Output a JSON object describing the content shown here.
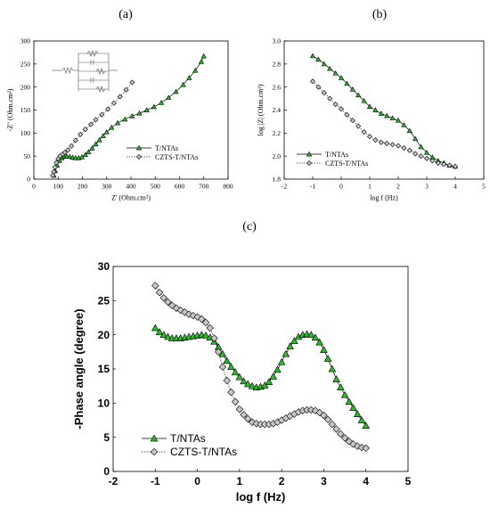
{
  "panel_labels": [
    "(a)",
    "(b)",
    "(c)"
  ],
  "colors": {
    "t_ntas": "#2db82d",
    "czts": "#c8c8c8",
    "axis": "#000000"
  },
  "chart_data": [
    {
      "panel": "(a)",
      "type": "scatter",
      "xlabel": "Z' (Ohm.cm²)",
      "ylabel": "-Z'' (Ohm.cm²)",
      "xlim": [
        0,
        800
      ],
      "ylim": [
        0,
        300
      ],
      "xticks": [
        0,
        100,
        200,
        300,
        400,
        500,
        600,
        700,
        800
      ],
      "yticks": [
        0,
        50,
        100,
        150,
        200,
        250,
        300
      ],
      "legend": {
        "placement": "lower-right"
      },
      "series": [
        {
          "name": "T/NTAs",
          "marker": "triangle",
          "line": "solid",
          "color": "#2db82d",
          "x": [
            82,
            88,
            96,
            105,
            115,
            125,
            135,
            148,
            160,
            172,
            185,
            198,
            212,
            225,
            240,
            255,
            270,
            285,
            300,
            320,
            345,
            375,
            405,
            435,
            465,
            495,
            525,
            555,
            585,
            615,
            640,
            665,
            690,
            700
          ],
          "y": [
            8,
            18,
            30,
            40,
            46,
            49,
            50,
            49,
            47,
            46,
            46,
            48,
            53,
            59,
            67,
            76,
            85,
            94,
            102,
            112,
            122,
            130,
            137,
            143,
            150,
            157,
            166,
            177,
            190,
            205,
            220,
            236,
            255,
            267
          ]
        },
        {
          "name": "CZTS-T/NTAs",
          "marker": "diamond",
          "line": "dotted",
          "color": "#c8c8c8",
          "x": [
            78,
            82,
            87,
            93,
            100,
            108,
            118,
            128,
            140,
            155,
            172,
            192,
            212,
            235,
            255,
            280,
            305,
            330,
            355,
            380,
            405
          ],
          "y": [
            8,
            16,
            26,
            36,
            44,
            50,
            54,
            58,
            63,
            72,
            84,
            97,
            108,
            119,
            129,
            140,
            152,
            165,
            179,
            194,
            210
          ]
        }
      ]
    },
    {
      "panel": "(b)",
      "type": "scatter",
      "xlabel": "log f (Hz)",
      "ylabel": "log |Z| (Ohm.cm²)",
      "xlim": [
        -2,
        5
      ],
      "ylim": [
        1.8,
        3.0
      ],
      "xticks": [
        -2,
        -1,
        0,
        1,
        2,
        3,
        4,
        5
      ],
      "yticks": [
        1.8,
        2.0,
        2.2,
        2.4,
        2.6,
        2.8,
        3.0
      ],
      "legend": {
        "placement": "lower-left"
      },
      "series": [
        {
          "name": "T/NTAs",
          "marker": "triangle",
          "line": "solid",
          "color": "#2db82d",
          "x": [
            -1,
            -0.8,
            -0.6,
            -0.4,
            -0.2,
            0,
            0.2,
            0.4,
            0.6,
            0.8,
            1,
            1.2,
            1.4,
            1.6,
            1.8,
            2,
            2.2,
            2.4,
            2.6,
            2.8,
            3,
            3.2,
            3.4,
            3.6,
            3.8,
            4
          ],
          "y": [
            2.87,
            2.84,
            2.8,
            2.76,
            2.72,
            2.68,
            2.63,
            2.58,
            2.53,
            2.48,
            2.43,
            2.4,
            2.37,
            2.35,
            2.33,
            2.31,
            2.27,
            2.22,
            2.15,
            2.08,
            2.03,
            1.99,
            1.96,
            1.94,
            1.92,
            1.91
          ]
        },
        {
          "name": "CZTS-T/NTAs",
          "marker": "diamond",
          "line": "dotted",
          "color": "#c8c8c8",
          "x": [
            -1,
            -0.8,
            -0.6,
            -0.4,
            -0.2,
            0,
            0.2,
            0.4,
            0.6,
            0.8,
            1,
            1.2,
            1.4,
            1.6,
            1.8,
            2,
            2.2,
            2.4,
            2.6,
            2.8,
            3,
            3.2,
            3.4,
            3.6,
            3.8,
            4
          ],
          "y": [
            2.65,
            2.6,
            2.55,
            2.5,
            2.45,
            2.41,
            2.36,
            2.31,
            2.26,
            2.21,
            2.17,
            2.14,
            2.12,
            2.11,
            2.1,
            2.09,
            2.07,
            2.05,
            2.02,
            2.0,
            1.98,
            1.96,
            1.94,
            1.93,
            1.92,
            1.91
          ]
        }
      ]
    },
    {
      "panel": "(c)",
      "type": "scatter",
      "xlabel": "log f (Hz)",
      "ylabel": "-Phase angle (degree)",
      "xlim": [
        -2,
        5
      ],
      "ylim": [
        0,
        30
      ],
      "xticks": [
        -2,
        -1,
        0,
        1,
        2,
        3,
        4,
        5
      ],
      "yticks": [
        0,
        5,
        10,
        15,
        20,
        25,
        30
      ],
      "legend": {
        "placement": "lower-left"
      },
      "series": [
        {
          "name": "T/NTAs",
          "marker": "triangle",
          "line": "solid",
          "color": "#2db82d",
          "x": [
            -1,
            -0.9,
            -0.8,
            -0.7,
            -0.6,
            -0.5,
            -0.4,
            -0.3,
            -0.2,
            -0.1,
            0,
            0.1,
            0.2,
            0.3,
            0.4,
            0.5,
            0.6,
            0.7,
            0.8,
            0.9,
            1,
            1.1,
            1.2,
            1.3,
            1.4,
            1.5,
            1.6,
            1.7,
            1.8,
            1.9,
            2,
            2.1,
            2.2,
            2.3,
            2.4,
            2.5,
            2.6,
            2.7,
            2.8,
            2.9,
            3,
            3.1,
            3.2,
            3.3,
            3.4,
            3.5,
            3.6,
            3.7,
            3.8,
            3.9,
            4
          ],
          "y": [
            21.0,
            20.4,
            20.0,
            19.7,
            19.5,
            19.5,
            19.5,
            19.6,
            19.7,
            19.8,
            19.9,
            20.0,
            19.9,
            19.6,
            19.0,
            18.2,
            17.2,
            16.2,
            15.3,
            14.5,
            13.8,
            13.2,
            12.8,
            12.5,
            12.3,
            12.4,
            12.6,
            13.1,
            13.9,
            14.9,
            16.0,
            17.2,
            18.3,
            19.1,
            19.7,
            20.0,
            20.1,
            20.0,
            19.6,
            18.9,
            17.8,
            16.5,
            15.0,
            13.5,
            12.3,
            11.2,
            10.2,
            9.3,
            8.4,
            7.5,
            6.7
          ]
        },
        {
          "name": "CZTS-T/NTAs",
          "marker": "diamond",
          "line": "dotted",
          "color": "#c8c8c8",
          "x": [
            -1,
            -0.9,
            -0.8,
            -0.7,
            -0.6,
            -0.5,
            -0.4,
            -0.3,
            -0.2,
            -0.1,
            0,
            0.1,
            0.2,
            0.3,
            0.4,
            0.5,
            0.6,
            0.7,
            0.8,
            0.9,
            1,
            1.1,
            1.2,
            1.3,
            1.4,
            1.5,
            1.6,
            1.7,
            1.8,
            1.9,
            2,
            2.1,
            2.2,
            2.3,
            2.4,
            2.5,
            2.6,
            2.7,
            2.8,
            2.9,
            3,
            3.1,
            3.2,
            3.3,
            3.4,
            3.5,
            3.6,
            3.7,
            3.8,
            3.9,
            4
          ],
          "y": [
            27.2,
            26.2,
            25.4,
            24.8,
            24.3,
            23.9,
            23.6,
            23.3,
            23.0,
            22.8,
            22.6,
            22.3,
            21.8,
            21.0,
            19.5,
            17.5,
            15.3,
            13.3,
            11.6,
            10.2,
            9.1,
            8.3,
            7.7,
            7.2,
            7.0,
            6.9,
            6.9,
            6.9,
            7.0,
            7.2,
            7.5,
            7.8,
            8.1,
            8.4,
            8.7,
            8.9,
            9.0,
            9.0,
            8.9,
            8.6,
            8.2,
            7.6,
            6.9,
            6.2,
            5.5,
            4.9,
            4.4,
            4.0,
            3.7,
            3.5,
            3.4
          ]
        }
      ]
    }
  ]
}
